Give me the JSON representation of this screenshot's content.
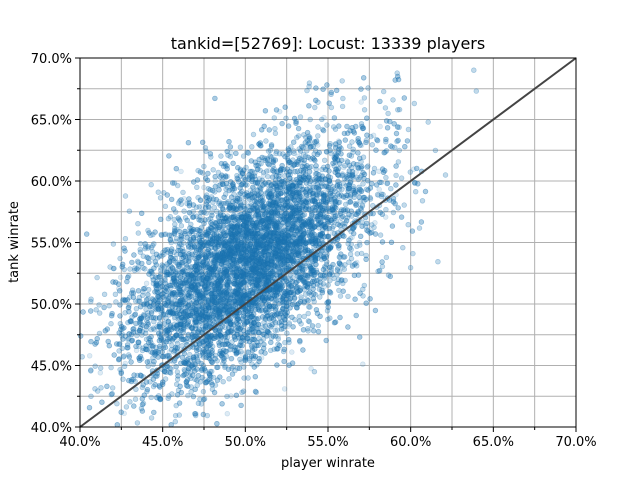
{
  "chart_data": {
    "type": "scatter",
    "title": "tankid=[52769]: Locust: 13339 players",
    "xlabel": "player winrate",
    "ylabel": "tank winrate",
    "xlim": [
      0.4,
      0.7
    ],
    "ylim": [
      0.4,
      0.7
    ],
    "x_ticks": [
      0.4,
      0.45,
      0.5,
      0.55,
      0.6,
      0.65,
      0.7
    ],
    "x_tick_labels": [
      "40.0%",
      "45.0%",
      "50.0%",
      "55.0%",
      "60.0%",
      "65.0%",
      "70.0%"
    ],
    "y_ticks": [
      0.4,
      0.45,
      0.5,
      0.55,
      0.6,
      0.65,
      0.7
    ],
    "y_tick_labels": [
      "40.0%",
      "45.0%",
      "50.0%",
      "55.0%",
      "60.0%",
      "65.0%",
      "70.0%"
    ],
    "minor_ticks": [
      0.425,
      0.475,
      0.525,
      0.575,
      0.625,
      0.675
    ],
    "grid": true,
    "grid_includes_minor": true,
    "point_count": 13339,
    "point_color": "#1f77b4",
    "point_alpha": 0.15,
    "reference_line": {
      "from": [
        0.4,
        0.4
      ],
      "to": [
        0.7,
        0.7
      ],
      "color": "#444444"
    },
    "distribution": {
      "mean_x": 0.502,
      "mean_y": 0.535,
      "std_x": 0.036,
      "std_y": 0.048,
      "correlation": 0.58
    }
  }
}
